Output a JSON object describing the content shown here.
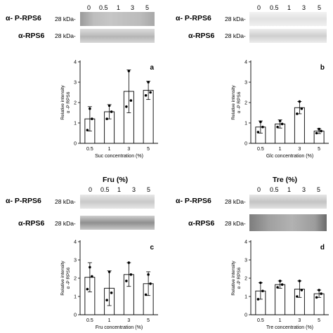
{
  "lanes": [
    "0",
    "0.5",
    "1",
    "3",
    "5"
  ],
  "antibodies": {
    "phospho": "α- P-RPS6",
    "total": "α-RPS6"
  },
  "marker": "28 kDa-",
  "headers": {
    "fru": "Fru (%)",
    "tre": "Tre (%)"
  },
  "chart_data": [
    {
      "type": "bar",
      "panel": "a",
      "categories": [
        "0.5",
        "1",
        "3",
        "5"
      ],
      "values": [
        1.2,
        1.55,
        2.55,
        2.6
      ],
      "errors": [
        0.6,
        0.35,
        1.05,
        0.45
      ],
      "points": [
        [
          0.65,
          1.2,
          1.7
        ],
        [
          1.2,
          1.55,
          1.85
        ],
        [
          1.8,
          2.1,
          3.55
        ],
        [
          2.35,
          2.5,
          3.0
        ]
      ],
      "ylim": [
        0,
        4
      ],
      "yticks": [
        0,
        1,
        2,
        3,
        4
      ],
      "xlabel": "Suc concentration (%)",
      "ylabel": "Relative intensity",
      "ylabel2": "α -P RPS6"
    },
    {
      "type": "bar",
      "panel": "b",
      "categories": [
        "0.5",
        "1",
        "3",
        "5"
      ],
      "values": [
        0.8,
        0.95,
        1.75,
        0.6
      ],
      "errors": [
        0.3,
        0.2,
        0.3,
        0.12
      ],
      "points": [
        [
          0.55,
          0.8,
          1.05
        ],
        [
          0.8,
          0.95,
          1.1
        ],
        [
          1.45,
          1.7,
          2.05
        ],
        [
          0.5,
          0.6,
          0.7
        ]
      ],
      "ylim": [
        0,
        4
      ],
      "yticks": [
        0,
        1,
        2,
        3,
        4
      ],
      "xlabel": "Glc concentration (%)",
      "ylabel": "Relative intensity",
      "ylabel2": "α -P RPS6"
    },
    {
      "type": "bar",
      "panel": "c",
      "categories": [
        "0.5",
        "1",
        "3",
        "5"
      ],
      "values": [
        2.05,
        1.45,
        2.2,
        1.7
      ],
      "errors": [
        0.8,
        0.95,
        0.65,
        0.65
      ],
      "points": [
        [
          1.4,
          2.1,
          2.6
        ],
        [
          0.8,
          1.2,
          2.35
        ],
        [
          1.85,
          2.2,
          2.85
        ],
        [
          1.1,
          1.7,
          2.2
        ]
      ],
      "ylim": [
        0,
        4
      ],
      "yticks": [
        0,
        1,
        2,
        3,
        4
      ],
      "xlabel": "Fru concentration (%)",
      "ylabel": "Relative intensity",
      "ylabel2": "α -P RPS6"
    },
    {
      "type": "bar",
      "panel": "d",
      "categories": [
        "0.5",
        "1",
        "3",
        "5"
      ],
      "values": [
        1.3,
        1.65,
        1.4,
        1.15
      ],
      "errors": [
        0.45,
        0.2,
        0.45,
        0.2
      ],
      "points": [
        [
          0.85,
          1.3,
          1.75
        ],
        [
          1.5,
          1.65,
          1.85
        ],
        [
          1.0,
          1.35,
          1.85
        ],
        [
          0.95,
          1.15,
          1.35
        ]
      ],
      "ylim": [
        0,
        4
      ],
      "yticks": [
        0,
        1,
        2,
        3,
        4
      ],
      "xlabel": "Tre concentration (%)",
      "ylabel": "Relative intensity",
      "ylabel2": "α -P RPS6"
    }
  ]
}
